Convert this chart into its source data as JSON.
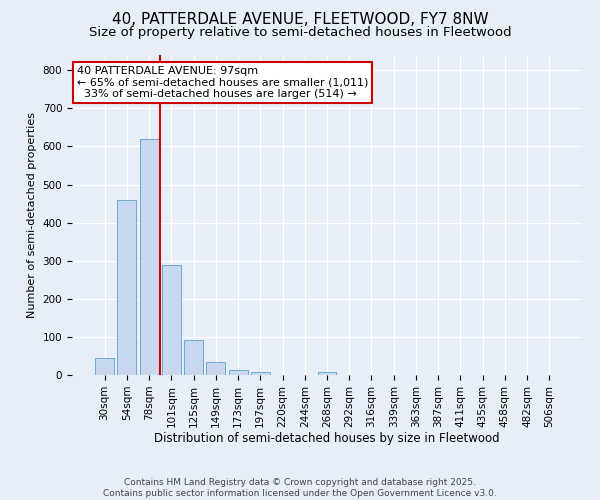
{
  "title": "40, PATTERDALE AVENUE, FLEETWOOD, FY7 8NW",
  "subtitle": "Size of property relative to semi-detached houses in Fleetwood",
  "xlabel": "Distribution of semi-detached houses by size in Fleetwood",
  "ylabel": "Number of semi-detached properties",
  "categories": [
    "30sqm",
    "54sqm",
    "78sqm",
    "101sqm",
    "125sqm",
    "149sqm",
    "173sqm",
    "197sqm",
    "220sqm",
    "244sqm",
    "268sqm",
    "292sqm",
    "316sqm",
    "339sqm",
    "363sqm",
    "387sqm",
    "411sqm",
    "435sqm",
    "458sqm",
    "482sqm",
    "506sqm"
  ],
  "values": [
    45,
    460,
    620,
    290,
    93,
    33,
    13,
    7,
    0,
    0,
    7,
    0,
    0,
    0,
    0,
    0,
    0,
    0,
    0,
    0,
    0
  ],
  "bar_color": "#c8d9ef",
  "bar_edge_color": "#6aaad4",
  "vline_color": "#cc0000",
  "vline_x": 2.5,
  "annotation_line1": "40 PATTERDALE AVENUE: 97sqm",
  "annotation_line2": "← 65% of semi-detached houses are smaller (1,011)",
  "annotation_line3": "  33% of semi-detached houses are larger (514) →",
  "annotation_box_facecolor": "#ffffff",
  "annotation_box_edgecolor": "#cc0000",
  "ylim": [
    0,
    840
  ],
  "yticks": [
    0,
    100,
    200,
    300,
    400,
    500,
    600,
    700,
    800
  ],
  "bg_color": "#e8eef8",
  "grid_color": "#ffffff",
  "title_fontsize": 11,
  "subtitle_fontsize": 9.5,
  "xlabel_fontsize": 8.5,
  "ylabel_fontsize": 8,
  "tick_fontsize": 7.5,
  "annot_fontsize": 8,
  "footer_fontsize": 6.5,
  "footer_text": "Contains HM Land Registry data © Crown copyright and database right 2025.\nContains public sector information licensed under the Open Government Licence v3.0."
}
